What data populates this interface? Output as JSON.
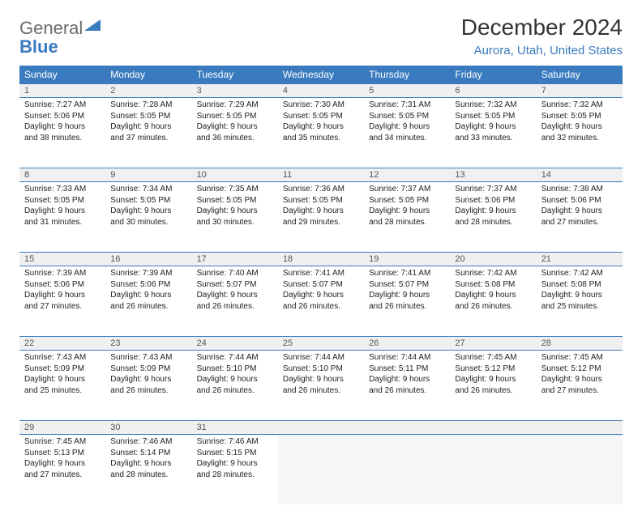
{
  "logo": {
    "part1": "General",
    "part2": "Blue"
  },
  "title": "December 2024",
  "location": "Aurora, Utah, United States",
  "colors": {
    "header_bg": "#3a7bbf",
    "header_text": "#ffffff",
    "daynum_bg": "#f0f0f0",
    "rule": "#3a7bbf",
    "subtitle": "#3a7bbf",
    "text": "#222222"
  },
  "font": {
    "family": "Arial",
    "day_header_pt": 12,
    "cell_pt": 10,
    "title_pt": 28,
    "subtitle_pt": 15
  },
  "days": [
    "Sunday",
    "Monday",
    "Tuesday",
    "Wednesday",
    "Thursday",
    "Friday",
    "Saturday"
  ],
  "weeks": [
    [
      {
        "n": "1",
        "sr": "Sunrise: 7:27 AM",
        "ss": "Sunset: 5:06 PM",
        "d1": "Daylight: 9 hours",
        "d2": "and 38 minutes."
      },
      {
        "n": "2",
        "sr": "Sunrise: 7:28 AM",
        "ss": "Sunset: 5:05 PM",
        "d1": "Daylight: 9 hours",
        "d2": "and 37 minutes."
      },
      {
        "n": "3",
        "sr": "Sunrise: 7:29 AM",
        "ss": "Sunset: 5:05 PM",
        "d1": "Daylight: 9 hours",
        "d2": "and 36 minutes."
      },
      {
        "n": "4",
        "sr": "Sunrise: 7:30 AM",
        "ss": "Sunset: 5:05 PM",
        "d1": "Daylight: 9 hours",
        "d2": "and 35 minutes."
      },
      {
        "n": "5",
        "sr": "Sunrise: 7:31 AM",
        "ss": "Sunset: 5:05 PM",
        "d1": "Daylight: 9 hours",
        "d2": "and 34 minutes."
      },
      {
        "n": "6",
        "sr": "Sunrise: 7:32 AM",
        "ss": "Sunset: 5:05 PM",
        "d1": "Daylight: 9 hours",
        "d2": "and 33 minutes."
      },
      {
        "n": "7",
        "sr": "Sunrise: 7:32 AM",
        "ss": "Sunset: 5:05 PM",
        "d1": "Daylight: 9 hours",
        "d2": "and 32 minutes."
      }
    ],
    [
      {
        "n": "8",
        "sr": "Sunrise: 7:33 AM",
        "ss": "Sunset: 5:05 PM",
        "d1": "Daylight: 9 hours",
        "d2": "and 31 minutes."
      },
      {
        "n": "9",
        "sr": "Sunrise: 7:34 AM",
        "ss": "Sunset: 5:05 PM",
        "d1": "Daylight: 9 hours",
        "d2": "and 30 minutes."
      },
      {
        "n": "10",
        "sr": "Sunrise: 7:35 AM",
        "ss": "Sunset: 5:05 PM",
        "d1": "Daylight: 9 hours",
        "d2": "and 30 minutes."
      },
      {
        "n": "11",
        "sr": "Sunrise: 7:36 AM",
        "ss": "Sunset: 5:05 PM",
        "d1": "Daylight: 9 hours",
        "d2": "and 29 minutes."
      },
      {
        "n": "12",
        "sr": "Sunrise: 7:37 AM",
        "ss": "Sunset: 5:05 PM",
        "d1": "Daylight: 9 hours",
        "d2": "and 28 minutes."
      },
      {
        "n": "13",
        "sr": "Sunrise: 7:37 AM",
        "ss": "Sunset: 5:06 PM",
        "d1": "Daylight: 9 hours",
        "d2": "and 28 minutes."
      },
      {
        "n": "14",
        "sr": "Sunrise: 7:38 AM",
        "ss": "Sunset: 5:06 PM",
        "d1": "Daylight: 9 hours",
        "d2": "and 27 minutes."
      }
    ],
    [
      {
        "n": "15",
        "sr": "Sunrise: 7:39 AM",
        "ss": "Sunset: 5:06 PM",
        "d1": "Daylight: 9 hours",
        "d2": "and 27 minutes."
      },
      {
        "n": "16",
        "sr": "Sunrise: 7:39 AM",
        "ss": "Sunset: 5:06 PM",
        "d1": "Daylight: 9 hours",
        "d2": "and 26 minutes."
      },
      {
        "n": "17",
        "sr": "Sunrise: 7:40 AM",
        "ss": "Sunset: 5:07 PM",
        "d1": "Daylight: 9 hours",
        "d2": "and 26 minutes."
      },
      {
        "n": "18",
        "sr": "Sunrise: 7:41 AM",
        "ss": "Sunset: 5:07 PM",
        "d1": "Daylight: 9 hours",
        "d2": "and 26 minutes."
      },
      {
        "n": "19",
        "sr": "Sunrise: 7:41 AM",
        "ss": "Sunset: 5:07 PM",
        "d1": "Daylight: 9 hours",
        "d2": "and 26 minutes."
      },
      {
        "n": "20",
        "sr": "Sunrise: 7:42 AM",
        "ss": "Sunset: 5:08 PM",
        "d1": "Daylight: 9 hours",
        "d2": "and 26 minutes."
      },
      {
        "n": "21",
        "sr": "Sunrise: 7:42 AM",
        "ss": "Sunset: 5:08 PM",
        "d1": "Daylight: 9 hours",
        "d2": "and 25 minutes."
      }
    ],
    [
      {
        "n": "22",
        "sr": "Sunrise: 7:43 AM",
        "ss": "Sunset: 5:09 PM",
        "d1": "Daylight: 9 hours",
        "d2": "and 25 minutes."
      },
      {
        "n": "23",
        "sr": "Sunrise: 7:43 AM",
        "ss": "Sunset: 5:09 PM",
        "d1": "Daylight: 9 hours",
        "d2": "and 26 minutes."
      },
      {
        "n": "24",
        "sr": "Sunrise: 7:44 AM",
        "ss": "Sunset: 5:10 PM",
        "d1": "Daylight: 9 hours",
        "d2": "and 26 minutes."
      },
      {
        "n": "25",
        "sr": "Sunrise: 7:44 AM",
        "ss": "Sunset: 5:10 PM",
        "d1": "Daylight: 9 hours",
        "d2": "and 26 minutes."
      },
      {
        "n": "26",
        "sr": "Sunrise: 7:44 AM",
        "ss": "Sunset: 5:11 PM",
        "d1": "Daylight: 9 hours",
        "d2": "and 26 minutes."
      },
      {
        "n": "27",
        "sr": "Sunrise: 7:45 AM",
        "ss": "Sunset: 5:12 PM",
        "d1": "Daylight: 9 hours",
        "d2": "and 26 minutes."
      },
      {
        "n": "28",
        "sr": "Sunrise: 7:45 AM",
        "ss": "Sunset: 5:12 PM",
        "d1": "Daylight: 9 hours",
        "d2": "and 27 minutes."
      }
    ],
    [
      {
        "n": "29",
        "sr": "Sunrise: 7:45 AM",
        "ss": "Sunset: 5:13 PM",
        "d1": "Daylight: 9 hours",
        "d2": "and 27 minutes."
      },
      {
        "n": "30",
        "sr": "Sunrise: 7:46 AM",
        "ss": "Sunset: 5:14 PM",
        "d1": "Daylight: 9 hours",
        "d2": "and 28 minutes."
      },
      {
        "n": "31",
        "sr": "Sunrise: 7:46 AM",
        "ss": "Sunset: 5:15 PM",
        "d1": "Daylight: 9 hours",
        "d2": "and 28 minutes."
      },
      null,
      null,
      null,
      null
    ]
  ]
}
